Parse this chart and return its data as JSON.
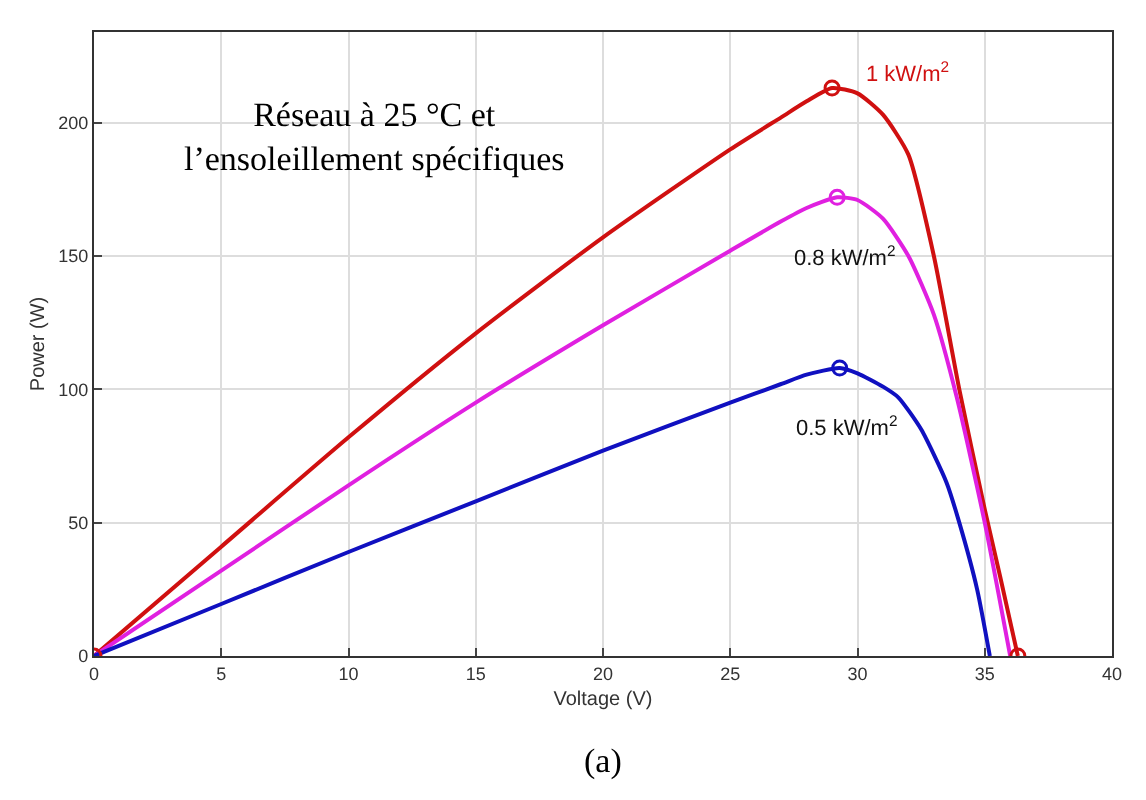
{
  "chart_data": {
    "type": "line",
    "xlabel": "Voltage (V)",
    "ylabel": "Power (W)",
    "xlim": [
      0,
      40
    ],
    "xticks": [
      0,
      5,
      10,
      15,
      20,
      25,
      30,
      35,
      40
    ],
    "ylim": [
      0,
      234
    ],
    "yticks": [
      0,
      50,
      100,
      150,
      200
    ],
    "grid": true,
    "legend": false,
    "series": [
      {
        "name": "1 kW/m$^{2}$",
        "color": "#d01010",
        "x": [
          0,
          5,
          10,
          15,
          20,
          25,
          27,
          28,
          29,
          30,
          31,
          32,
          33,
          34,
          35,
          35.6,
          36.3
        ],
        "values": [
          0,
          41,
          82,
          121,
          157,
          190,
          202,
          208,
          213,
          211,
          203,
          188,
          150,
          100,
          55,
          30,
          0
        ]
      },
      {
        "name": "0.8 kW/m$^{2}$",
        "color": "#e020e0",
        "x": [
          0,
          5,
          10,
          15,
          20,
          25,
          27,
          28,
          29.2,
          30,
          31,
          32,
          33,
          33.9,
          35,
          36
        ],
        "values": [
          0,
          32,
          64,
          95,
          124,
          152,
          163,
          168,
          172,
          171,
          164,
          150,
          128,
          97,
          50,
          0
        ]
      },
      {
        "name": "0.5 kW/m$^{2}$",
        "color": "#1010c0",
        "x": [
          0,
          5,
          10,
          15,
          20,
          25,
          27,
          28,
          29.3,
          30,
          31,
          31.6,
          32.5,
          33.5,
          34,
          34.7,
          35.2
        ],
        "values": [
          0,
          19.5,
          39,
          58,
          77,
          95,
          102,
          105.5,
          108,
          106,
          101,
          97,
          85,
          65,
          50,
          25,
          0
        ]
      },
      {
        "type": "scatter",
        "marker": "circle",
        "color": "#d01010",
        "x": [
          0,
          29,
          36.3
        ],
        "values": [
          0,
          213,
          0
        ]
      },
      {
        "type": "scatter",
        "marker": "circle",
        "color": "#e020e0",
        "x": [
          29.2
        ],
        "values": [
          172
        ]
      },
      {
        "type": "scatter",
        "marker": "circle",
        "color": "#1010c0",
        "x": [
          29.3
        ],
        "values": [
          108
        ]
      }
    ],
    "annotations": [
      "Réseau à 25 °C et\nl’ensoleillement spécifiques",
      "(a)"
    ]
  }
}
